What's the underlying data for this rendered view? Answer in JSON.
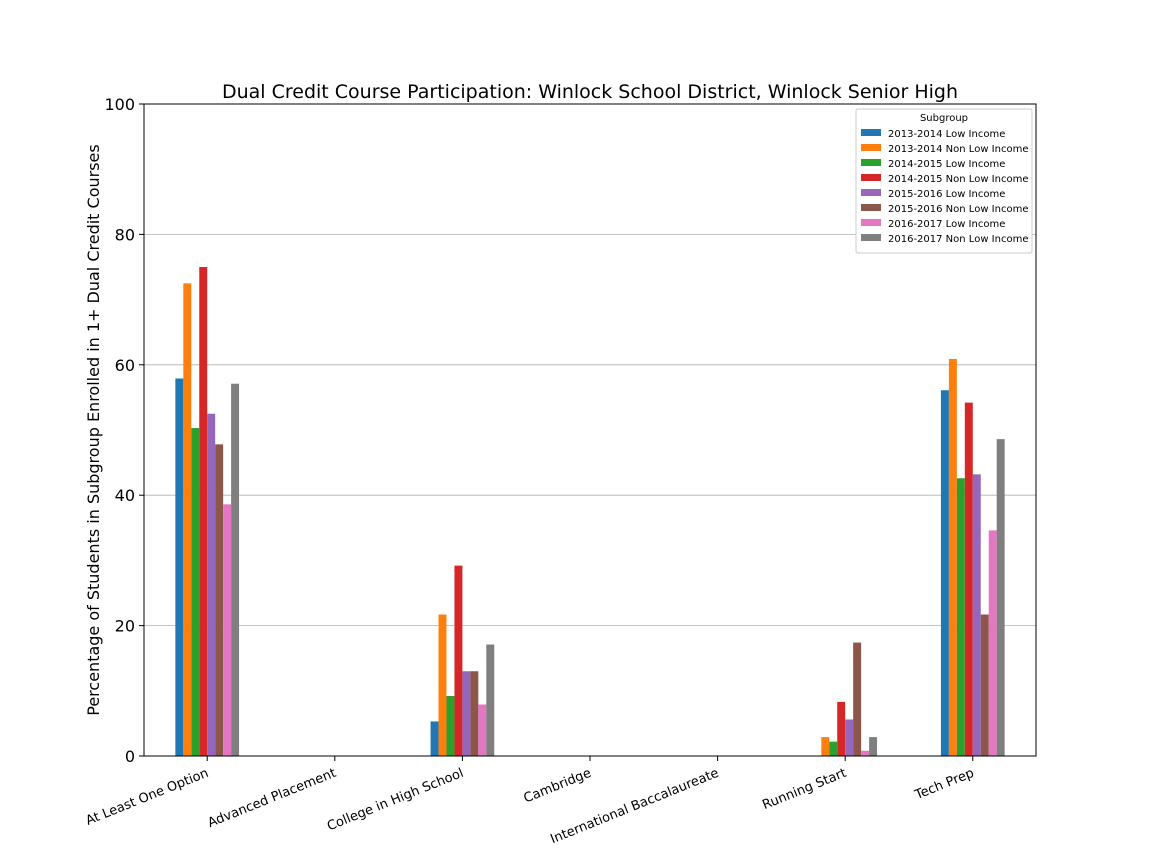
{
  "chart_data": {
    "type": "bar",
    "title": "Dual Credit Course Participation: Winlock School District, Winlock Senior High",
    "xlabel": "",
    "ylabel": "Percentage of Students in Subgroup Enrolled in 1+ Dual Credit Courses",
    "ylim": [
      0,
      100
    ],
    "yticks": [
      0,
      20,
      40,
      60,
      80,
      100
    ],
    "grid": "horizontal",
    "legend_title": "Subgroup",
    "legend_position": "top-right",
    "categories": [
      "At Least One Option",
      "Advanced Placement",
      "College in High School",
      "Cambridge",
      "International Baccalaureate",
      "Running Start",
      "Tech Prep"
    ],
    "series": [
      {
        "name": "2013-2014 Low Income",
        "color": "#1f77b4",
        "values": [
          57.9,
          0,
          5.3,
          0,
          0,
          0,
          56.1
        ]
      },
      {
        "name": "2013-2014 Non Low Income",
        "color": "#ff7f0e",
        "values": [
          72.5,
          0,
          21.7,
          0,
          0,
          2.9,
          60.9
        ]
      },
      {
        "name": "2014-2015 Low Income",
        "color": "#2ca02c",
        "values": [
          50.3,
          0,
          9.2,
          0,
          0,
          2.2,
          42.6
        ]
      },
      {
        "name": "2014-2015 Non Low Income",
        "color": "#d62728",
        "values": [
          75.0,
          0,
          29.2,
          0,
          0,
          8.3,
          54.2
        ]
      },
      {
        "name": "2015-2016 Low Income",
        "color": "#9467bd",
        "values": [
          52.5,
          0,
          13.0,
          0,
          0,
          5.6,
          43.2
        ]
      },
      {
        "name": "2015-2016 Non Low Income",
        "color": "#8c564b",
        "values": [
          47.8,
          0,
          13.0,
          0,
          0,
          17.4,
          21.7
        ]
      },
      {
        "name": "2016-2017 Low Income",
        "color": "#e377c2",
        "values": [
          38.6,
          0,
          7.9,
          0,
          0,
          0.8,
          34.6
        ]
      },
      {
        "name": "2016-2017 Non Low Income",
        "color": "#7f7f7f",
        "values": [
          57.1,
          0,
          17.1,
          0,
          0,
          2.9,
          48.6
        ]
      }
    ]
  }
}
